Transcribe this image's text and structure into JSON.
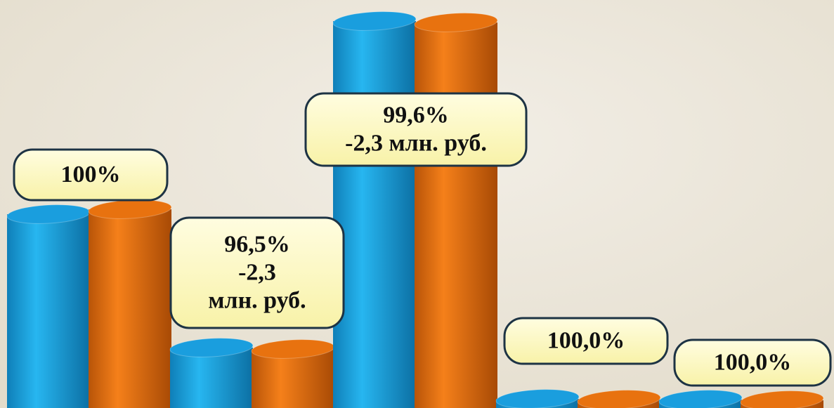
{
  "chart_data": {
    "type": "cylinder-bar",
    "series": [
      {
        "color": "#1a9ede",
        "values": [
          276,
          86,
          551,
          13,
          12
        ]
      },
      {
        "color": "#e8720f",
        "values": [
          283,
          84,
          549,
          12,
          11
        ]
      }
    ],
    "annotations": [
      [
        "100%"
      ],
      [
        "96,5%",
        "-2,3",
        "млн. руб."
      ],
      [
        "99,6%",
        "-2,3 млн. руб."
      ],
      [
        "100,0%"
      ],
      [
        "100,0%"
      ]
    ]
  }
}
